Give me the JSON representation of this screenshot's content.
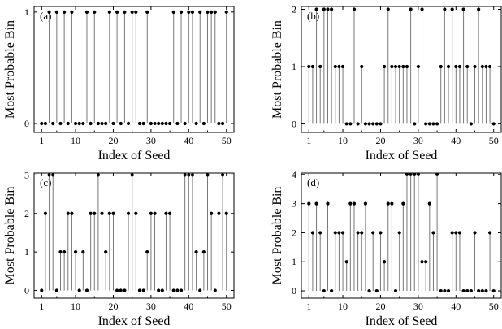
{
  "chart_data": [
    {
      "type": "stem",
      "panel_label": "(a)",
      "xlabel": "Index of Seed",
      "ylabel": "Most Probable Bin",
      "xlim": [
        -1,
        52
      ],
      "ylim": [
        -0.08,
        1.05
      ],
      "xticks": [
        1,
        10,
        20,
        30,
        40,
        50
      ],
      "yticks": [
        0,
        1
      ],
      "x": [
        1,
        2,
        3,
        4,
        5,
        6,
        7,
        8,
        9,
        10,
        11,
        12,
        13,
        14,
        15,
        16,
        17,
        18,
        19,
        20,
        21,
        22,
        23,
        24,
        25,
        26,
        27,
        28,
        29,
        30,
        31,
        32,
        33,
        34,
        35,
        36,
        37,
        38,
        39,
        40,
        41,
        42,
        43,
        44,
        45,
        46,
        47,
        48,
        49,
        50
      ],
      "values": [
        0,
        0,
        1,
        0,
        1,
        0,
        1,
        0,
        1,
        0,
        0,
        0,
        1,
        0,
        1,
        0,
        0,
        0,
        1,
        0,
        1,
        0,
        1,
        0,
        1,
        1,
        0,
        0,
        1,
        0,
        0,
        0,
        0,
        0,
        0,
        1,
        0,
        1,
        0,
        1,
        1,
        0,
        1,
        0,
        1,
        1,
        1,
        0,
        0,
        1
      ]
    },
    {
      "type": "stem",
      "panel_label": "(b)",
      "xlabel": "Index of Seed",
      "ylabel": "Most Probable Bin",
      "xlim": [
        -1,
        52
      ],
      "ylim": [
        -0.15,
        2.05
      ],
      "xticks": [
        1,
        10,
        20,
        30,
        40,
        50
      ],
      "yticks": [
        0,
        1,
        2
      ],
      "x": [
        1,
        2,
        3,
        4,
        5,
        6,
        7,
        8,
        9,
        10,
        11,
        12,
        13,
        14,
        15,
        16,
        17,
        18,
        19,
        20,
        21,
        22,
        23,
        24,
        25,
        26,
        27,
        28,
        29,
        30,
        31,
        32,
        33,
        34,
        35,
        36,
        37,
        38,
        39,
        40,
        41,
        42,
        43,
        44,
        45,
        46,
        47,
        48,
        49,
        50
      ],
      "values": [
        1,
        1,
        2,
        1,
        2,
        2,
        2,
        1,
        1,
        1,
        0,
        0,
        2,
        0,
        1,
        0,
        0,
        0,
        0,
        0,
        1,
        2,
        1,
        1,
        1,
        1,
        1,
        2,
        0,
        1,
        2,
        0,
        0,
        0,
        0,
        1,
        2,
        1,
        2,
        1,
        1,
        2,
        1,
        0,
        1,
        2,
        1,
        1,
        1,
        0
      ]
    },
    {
      "type": "stem",
      "panel_label": "(c)",
      "xlabel": "Index of Seed",
      "ylabel": "Most Probable Bin",
      "xlim": [
        -1,
        52
      ],
      "ylim": [
        -0.2,
        3.05
      ],
      "xticks": [
        1,
        10,
        20,
        30,
        40,
        50
      ],
      "yticks": [
        0,
        1,
        2,
        3
      ],
      "x": [
        1,
        2,
        3,
        4,
        5,
        6,
        7,
        8,
        9,
        10,
        11,
        12,
        13,
        14,
        15,
        16,
        17,
        18,
        19,
        20,
        21,
        22,
        23,
        24,
        25,
        26,
        27,
        28,
        29,
        30,
        31,
        32,
        33,
        34,
        35,
        36,
        37,
        38,
        39,
        40,
        41,
        42,
        43,
        44,
        45,
        46,
        47,
        48,
        49,
        50
      ],
      "values": [
        0,
        2,
        3,
        3,
        0,
        1,
        1,
        2,
        2,
        1,
        0,
        1,
        0,
        2,
        2,
        3,
        2,
        1,
        2,
        2,
        0,
        0,
        0,
        2,
        3,
        2,
        0,
        0,
        1,
        2,
        2,
        0,
        0,
        2,
        2,
        0,
        0,
        0,
        3,
        3,
        3,
        1,
        0,
        1,
        3,
        2,
        0,
        2,
        3,
        2
      ]
    },
    {
      "type": "stem",
      "panel_label": "(d)",
      "xlabel": "Index of Seed",
      "ylabel": "Most Probable Bin",
      "xlim": [
        -1,
        52
      ],
      "ylim": [
        -0.25,
        4.05
      ],
      "xticks": [
        1,
        10,
        20,
        30,
        40,
        50
      ],
      "yticks": [
        0,
        1,
        2,
        3,
        4
      ],
      "x": [
        1,
        2,
        3,
        4,
        5,
        6,
        7,
        8,
        9,
        10,
        11,
        12,
        13,
        14,
        15,
        16,
        17,
        18,
        19,
        20,
        21,
        22,
        23,
        24,
        25,
        26,
        27,
        28,
        29,
        30,
        31,
        32,
        33,
        34,
        35,
        36,
        37,
        38,
        39,
        40,
        41,
        42,
        43,
        44,
        45,
        46,
        47,
        48,
        49,
        50
      ],
      "values": [
        3,
        2,
        3,
        2,
        0,
        3,
        0,
        2,
        2,
        2,
        1,
        3,
        3,
        2,
        2,
        3,
        0,
        2,
        0,
        2,
        1,
        3,
        3,
        0,
        2,
        3,
        4,
        4,
        4,
        4,
        1,
        1,
        3,
        2,
        4,
        0,
        0,
        0,
        2,
        2,
        2,
        0,
        0,
        0,
        2,
        0,
        0,
        0,
        2,
        0
      ]
    }
  ]
}
